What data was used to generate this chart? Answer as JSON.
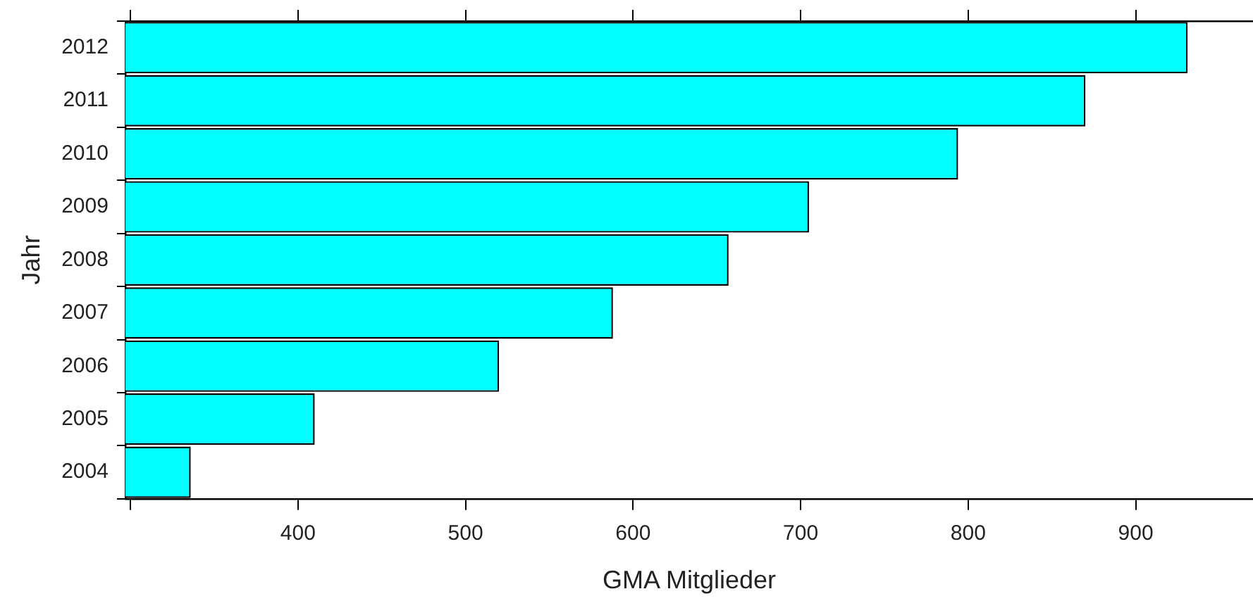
{
  "chart_data": {
    "type": "bar",
    "orientation": "horizontal",
    "xlabel": "GMA Mitglieder",
    "ylabel": "Jahr",
    "categories": [
      "2012",
      "2011",
      "2010",
      "2009",
      "2008",
      "2007",
      "2006",
      "2005",
      "2004"
    ],
    "values": [
      931,
      870,
      794,
      705,
      657,
      588,
      520,
      410,
      336
    ],
    "color": "#00ffff",
    "xlim": [
      297,
      970
    ],
    "xticks": [
      {
        "value": 300,
        "label": null
      },
      400,
      500,
      600,
      700,
      800,
      900
    ],
    "grid": false,
    "legend": false
  }
}
